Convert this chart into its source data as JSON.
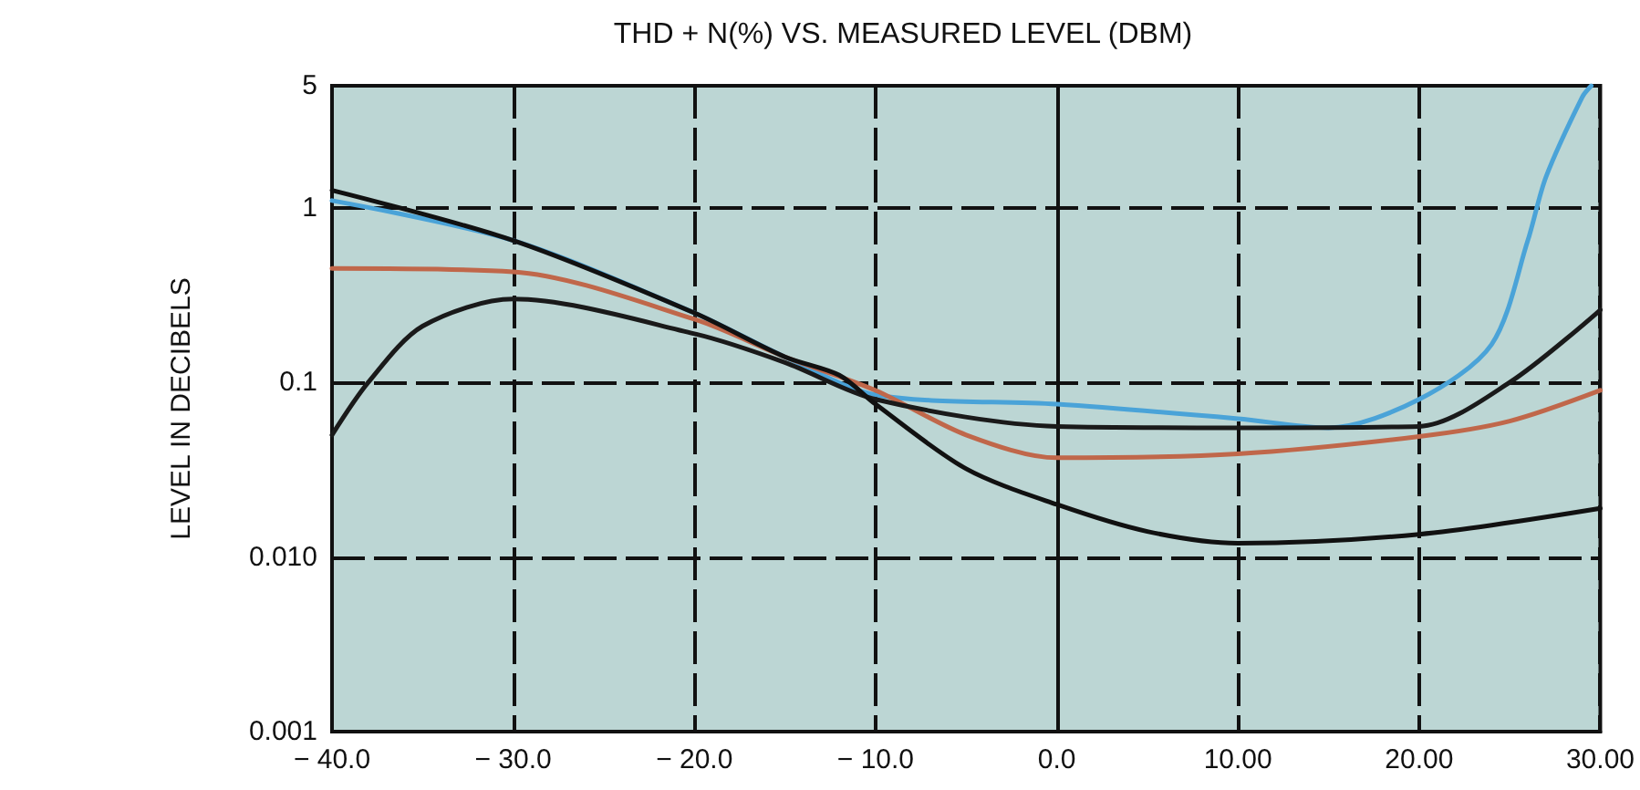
{
  "chart_data": {
    "type": "line",
    "title": "THD + N(%) VS. MEASURED LEVEL (DBM)",
    "ylabel": "LEVEL IN DECIBELS",
    "log": "y",
    "grid": true,
    "marker": "none",
    "line_style": "solid",
    "xlim": [
      -40,
      30
    ],
    "xticks": [
      {
        "value": -40,
        "label": "− 40.0"
      },
      {
        "value": -30,
        "label": "− 30.0"
      },
      {
        "value": -20,
        "label": "− 20.0"
      },
      {
        "value": -10,
        "label": "− 10.0"
      },
      {
        "value": 0,
        "label": "0.0"
      },
      {
        "value": 10,
        "label": "10.00"
      },
      {
        "value": 20,
        "label": "20.00"
      },
      {
        "value": 30,
        "label": "30.00"
      }
    ],
    "ylim": [
      0.001,
      5
    ],
    "yticks": [
      0.001,
      {
        "value": 0.01,
        "label": "0.010"
      },
      0.1,
      1,
      5
    ],
    "series": [
      {
        "color": "#4aa3d8",
        "x": [
          -40,
          -30,
          -20,
          -15,
          -10,
          0,
          10,
          15,
          20,
          24,
          26,
          27,
          29,
          29.5
        ],
        "values": [
          1.1,
          0.65,
          0.25,
          0.14,
          0.085,
          0.075,
          0.062,
          0.055,
          0.08,
          0.165,
          0.65,
          1.5,
          4.3,
          5
        ]
      },
      {
        "color": "#c0674a",
        "x": [
          -40,
          -30,
          -20,
          -15,
          -10,
          -5,
          0,
          10,
          20,
          25,
          30
        ],
        "values": [
          0.45,
          0.43,
          0.23,
          0.14,
          0.09,
          0.05,
          0.037,
          0.039,
          0.049,
          0.06,
          0.09
        ]
      },
      {
        "color": "#1a1a1a",
        "x": [
          -40,
          -38,
          -35,
          -30,
          -20,
          -15,
          -10,
          0,
          10,
          20,
          25,
          30
        ],
        "values": [
          0.05,
          0.1,
          0.21,
          0.3,
          0.19,
          0.13,
          0.08,
          0.056,
          0.055,
          0.056,
          0.1,
          0.26
        ]
      },
      {
        "color": "#111111",
        "x": [
          -40,
          -30,
          -20,
          -15,
          -12,
          -10,
          -5,
          0,
          5,
          10,
          20,
          30
        ],
        "values": [
          1.26,
          0.65,
          0.25,
          0.14,
          0.11,
          0.075,
          0.032,
          0.02,
          0.014,
          0.012,
          0.0135,
          0.019
        ]
      }
    ]
  }
}
